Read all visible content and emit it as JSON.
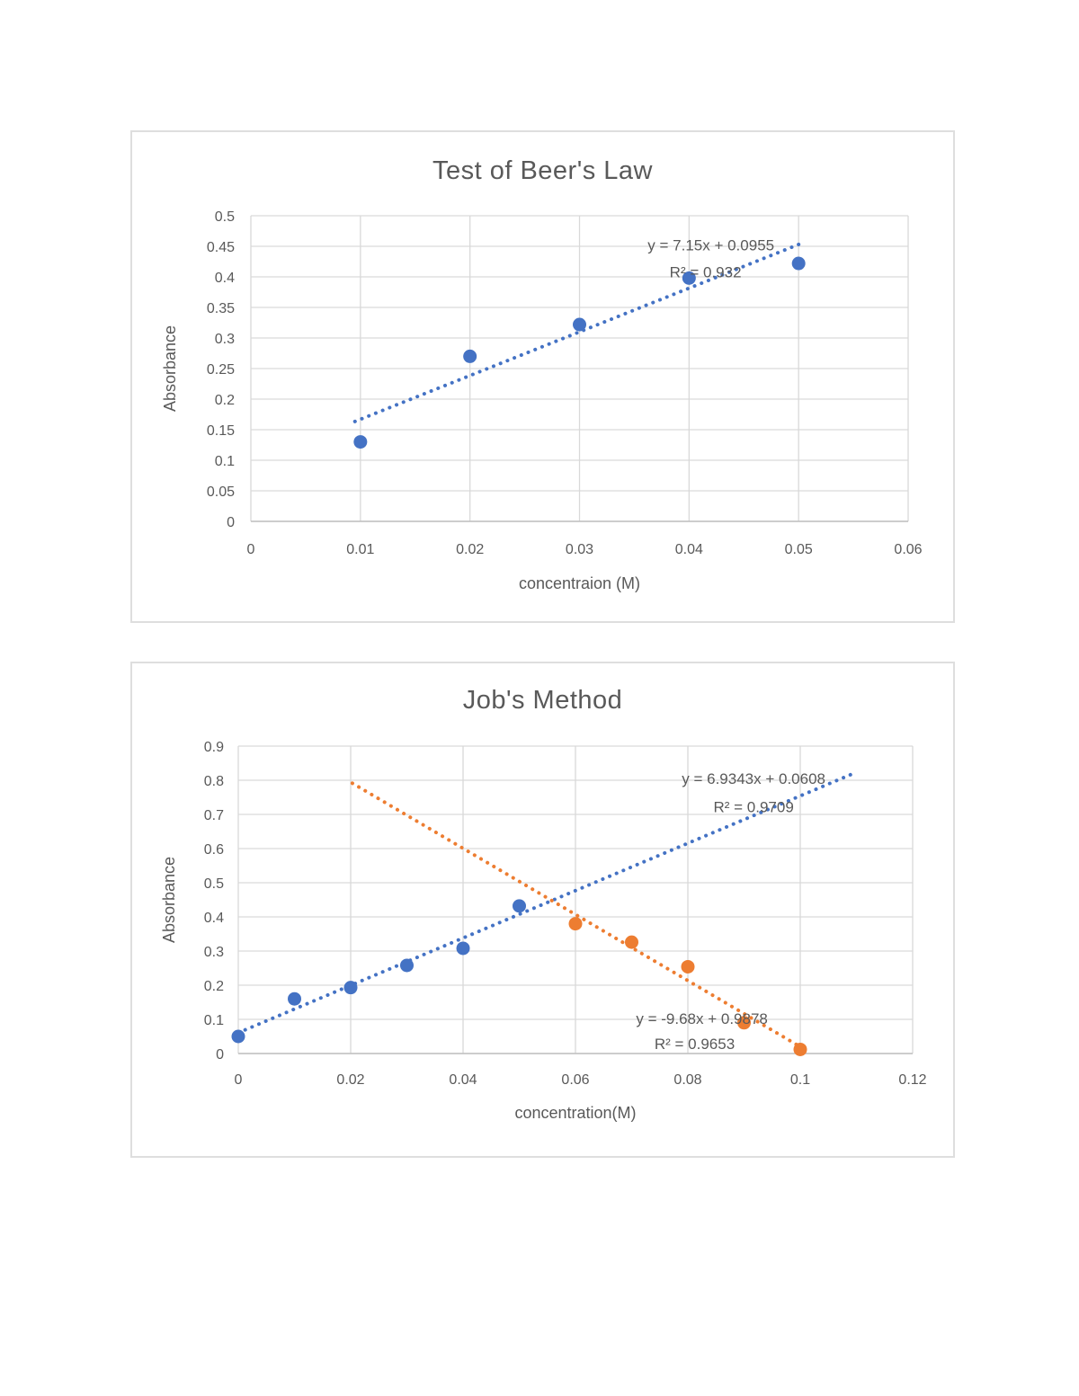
{
  "page": {
    "background_color": "#ffffff",
    "text_color": "#595959",
    "gridline_color": "#d9d9d9",
    "axis_line_color": "#bfbfbf"
  },
  "chart_data": [
    {
      "type": "scatter",
      "title": "Test of Beer's Law",
      "xlabel": "concentraion (M)",
      "ylabel": "Absorbance",
      "xlim": [
        0,
        0.06
      ],
      "xtick_step": 0.01,
      "ylim": [
        0,
        0.5
      ],
      "ytick_step": 0.05,
      "grid": true,
      "legend": "none",
      "series": [
        {
          "name": "absorbance",
          "color": "#4472C4",
          "marker": "circle",
          "points": [
            [
              0.01,
              0.13
            ],
            [
              0.02,
              0.27
            ],
            [
              0.03,
              0.322
            ],
            [
              0.04,
              0.398
            ],
            [
              0.05,
              0.422
            ]
          ],
          "trendline": {
            "style": "dotted",
            "slope": 7.15,
            "intercept": 0.0955,
            "x_start": 0.0095,
            "x_end": 0.0505
          },
          "annotations": [
            {
              "text": "y = 7.15x + 0.0955",
              "x": 0.042,
              "y": 0.452
            },
            {
              "text": "R² = 0.932",
              "x": 0.0415,
              "y": 0.408
            }
          ]
        }
      ]
    },
    {
      "type": "scatter",
      "title": "Job's Method",
      "xlabel": "concentration(M)",
      "ylabel": "Absorbance",
      "xlim": [
        0,
        0.12
      ],
      "xtick_step": 0.02,
      "ylim": [
        0,
        0.9
      ],
      "ytick_step": 0.1,
      "grid": true,
      "legend": "none",
      "series": [
        {
          "name": "increasing-series",
          "color": "#4472C4",
          "marker": "circle",
          "points": [
            [
              0,
              0.05
            ],
            [
              0.01,
              0.16
            ],
            [
              0.02,
              0.193
            ],
            [
              0.03,
              0.258
            ],
            [
              0.04,
              0.308
            ],
            [
              0.05,
              0.432
            ]
          ],
          "trendline": {
            "style": "dotted",
            "slope": 6.9343,
            "intercept": 0.0608,
            "x_start": 0,
            "x_end": 0.1095
          },
          "annotations": [
            {
              "text": "y = 6.9343x + 0.0608",
              "x": 0.0917,
              "y": 0.805
            },
            {
              "text": "R² = 0.9709",
              "x": 0.0917,
              "y": 0.722
            }
          ]
        },
        {
          "name": "decreasing-series",
          "color": "#ED7D31",
          "marker": "circle",
          "points": [
            [
              0.06,
              0.38
            ],
            [
              0.07,
              0.326
            ],
            [
              0.08,
              0.254
            ],
            [
              0.09,
              0.09
            ],
            [
              0.1,
              0.012
            ]
          ],
          "trendline": {
            "style": "dotted",
            "slope": -9.68,
            "intercept": 0.9878,
            "x_start": 0.0203,
            "x_end": 0.101
          },
          "annotations": [
            {
              "text": "y = -9.68x + 0.9878",
              "x": 0.0825,
              "y": 0.103
            },
            {
              "text": "R² = 0.9653",
              "x": 0.0812,
              "y": 0.029
            }
          ]
        }
      ]
    }
  ]
}
